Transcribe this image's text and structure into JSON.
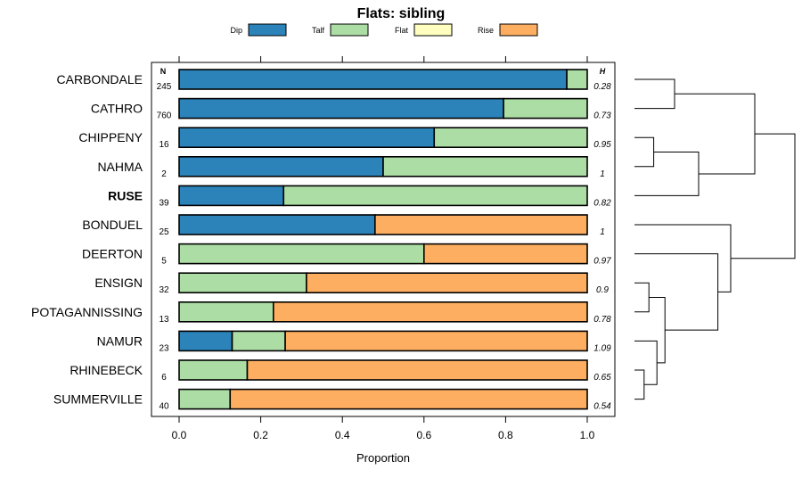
{
  "chart_data": {
    "type": "bar",
    "orientation": "horizontal",
    "stacked": true,
    "title": "Flats: sibling",
    "xlabel": "Proportion",
    "xlim": [
      0,
      1
    ],
    "xticks": [
      "0.0",
      "0.2",
      "0.4",
      "0.6",
      "0.8",
      "1.0"
    ],
    "n_header": "N",
    "h_header": "H",
    "legend_position": "top",
    "categories": [
      "CARBONDALE",
      "CATHRO",
      "CHIPPENY",
      "NAHMA",
      "RUSE",
      "BONDUEL",
      "DEERTON",
      "ENSIGN",
      "POTAGANNISSING",
      "NAMUR",
      "RHINEBECK",
      "SUMMERVILLE"
    ],
    "highlight": "RUSE",
    "n": [
      "245",
      "760",
      "16",
      "2",
      "39",
      "25",
      "5",
      "32",
      "13",
      "23",
      "6",
      "40"
    ],
    "h": [
      "0.28",
      "0.73",
      "0.95",
      "1",
      "0.82",
      "1",
      "0.97",
      "0.9",
      "0.78",
      "1.09",
      "0.65",
      "0.54"
    ],
    "series": [
      {
        "name": "Dip",
        "color": "#2b83ba",
        "values": [
          0.95,
          0.795,
          0.625,
          0.5,
          0.256,
          0.48,
          0,
          0,
          0,
          0.13,
          0,
          0
        ]
      },
      {
        "name": "Talf",
        "color": "#abdda4",
        "values": [
          0.05,
          0.205,
          0.375,
          0.5,
          0.744,
          0,
          0.6,
          0.312,
          0.231,
          0.13,
          0.167,
          0.125
        ]
      },
      {
        "name": "Flat",
        "color": "#ffffbf",
        "values": [
          0,
          0,
          0,
          0,
          0,
          0,
          0,
          0,
          0,
          0,
          0,
          0
        ]
      },
      {
        "name": "Rise",
        "color": "#fdae61",
        "values": [
          0,
          0,
          0,
          0,
          0,
          0.52,
          0.4,
          0.688,
          0.769,
          0.74,
          0.833,
          0.875
        ]
      }
    ],
    "dendrogram": [
      {
        "children": [
          0,
          1
        ],
        "height": 0.25
      },
      {
        "children": [
          2,
          3
        ],
        "height": 0.12
      },
      {
        "children": [
          13,
          4
        ],
        "height": 0.4
      },
      {
        "children": [
          12,
          14
        ],
        "height": 0.75
      },
      {
        "children": [
          7,
          8
        ],
        "height": 0.09
      },
      {
        "children": [
          10,
          11
        ],
        "height": 0.06
      },
      {
        "children": [
          9,
          17
        ],
        "height": 0.14
      },
      {
        "children": [
          16,
          18
        ],
        "height": 0.19
      },
      {
        "children": [
          6,
          19
        ],
        "height": 0.52
      },
      {
        "children": [
          5,
          20
        ],
        "height": 0.6
      },
      {
        "children": [
          15,
          21
        ],
        "height": 1.0
      }
    ]
  }
}
